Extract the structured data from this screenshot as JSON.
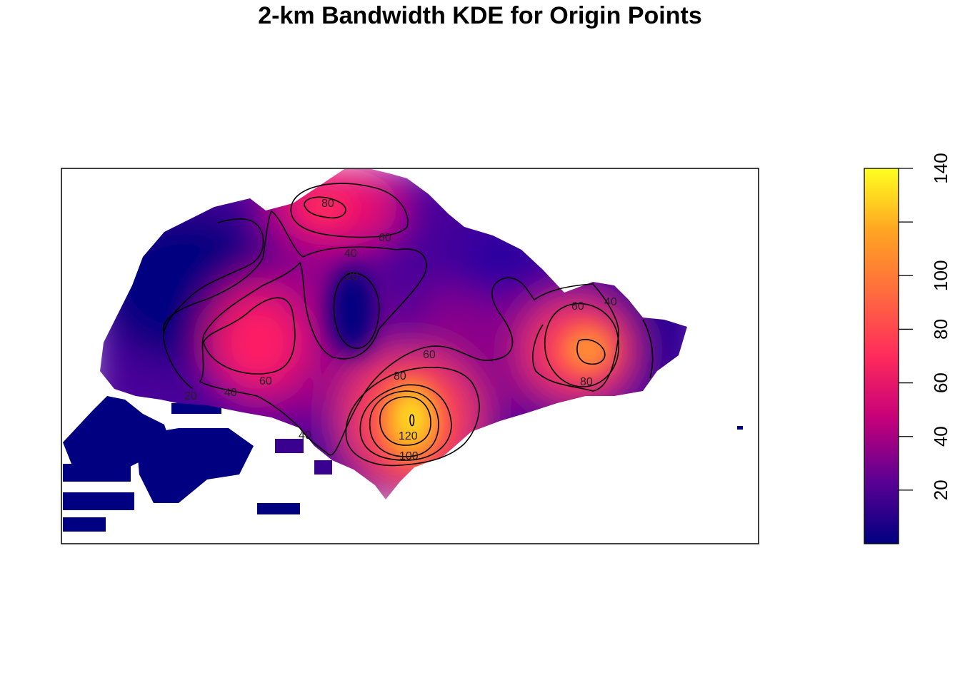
{
  "chart_data": {
    "type": "heatmap",
    "title": "2-km Bandwidth KDE for Origin Points",
    "xlabel": "",
    "ylabel": "",
    "value_range": [
      0,
      140
    ],
    "colorbar": {
      "ticks": [
        20,
        40,
        60,
        80,
        100,
        140
      ],
      "placement": "right",
      "colors": [
        "#000080",
        "#5b0094",
        "#c5007a",
        "#ff2b5c",
        "#ff6a3e",
        "#ffa421",
        "#ffff20"
      ]
    },
    "grid": false,
    "hotspots": [
      {
        "name": "south-central peak",
        "value": 135
      },
      {
        "name": "east peak",
        "value": 95
      },
      {
        "name": "north peak",
        "value": 82
      },
      {
        "name": "west peak",
        "value": 72
      },
      {
        "name": "central low",
        "value": 15
      }
    ],
    "contour_levels": [
      20,
      40,
      60,
      80,
      100,
      120
    ],
    "contour_labels": [
      {
        "text": "80"
      },
      {
        "text": "60"
      },
      {
        "text": "40"
      },
      {
        "text": "20"
      },
      {
        "text": "60"
      },
      {
        "text": "40"
      },
      {
        "text": "20"
      },
      {
        "text": "40"
      },
      {
        "text": "60"
      },
      {
        "text": "80"
      },
      {
        "text": "120"
      },
      {
        "text": "100"
      },
      {
        "text": "60"
      },
      {
        "text": "40"
      },
      {
        "text": "80"
      }
    ]
  }
}
